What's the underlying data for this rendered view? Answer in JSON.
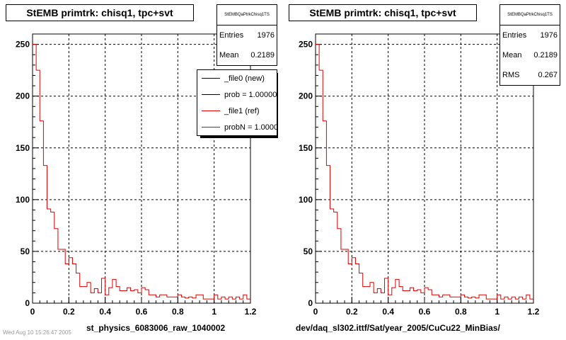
{
  "panels": [
    {
      "title": "StEMB primtrk: chisq1, tpc+svt",
      "stats": {
        "name": "StEMBQaPtrkChisq1TS",
        "rows": [
          {
            "label": "Entries",
            "value": "1976"
          },
          {
            "label": "Mean",
            "value": "0.2189"
          }
        ]
      },
      "legend": [
        {
          "label": "_file0 (new)",
          "color": "#000000"
        },
        {
          "label": "prob = 1.000000",
          "color": "#000000"
        },
        {
          "label": "_file1 (ref)",
          "color": "#e00000"
        },
        {
          "label": "probN = 1.000000",
          "color": "#e00000"
        }
      ],
      "xlabel": "st_physics_6083006_raw_1040002",
      "corner_text": "Wed Aug 10 15:26:47 2005"
    },
    {
      "title": "StEMB primtrk: chisq1, tpc+svt",
      "stats": {
        "name": "StEMBQaPtrkChisq1TS",
        "rows": [
          {
            "label": "Entries",
            "value": "1976"
          },
          {
            "label": "Mean",
            "value": "0.2189"
          },
          {
            "label": "RMS",
            "value": "0.267"
          }
        ]
      },
      "xlabel": "dev/daq_sl302.ittf/Sat/year_2005/CuCu22_MinBias/"
    }
  ],
  "chart_data": [
    {
      "type": "histogram",
      "line_color": "#e00000",
      "bin_edges_start": 0,
      "bin_width": 0.02,
      "values": [
        250,
        225,
        176,
        133,
        91,
        88,
        72,
        52,
        52,
        38,
        44,
        38,
        29,
        16,
        16,
        20,
        10,
        14,
        10,
        24,
        8,
        15,
        23,
        16,
        12,
        12,
        15,
        12,
        13,
        10,
        15,
        13,
        8,
        8,
        6,
        8,
        8,
        6,
        6,
        6,
        8,
        6,
        5,
        6,
        5,
        8,
        8,
        4,
        4,
        4,
        8,
        4,
        6,
        4,
        6,
        4,
        6,
        4,
        8,
        4
      ],
      "xlim": [
        0,
        1.2
      ],
      "ylim": [
        0,
        260
      ],
      "xticks": [
        "0",
        "0.2",
        "0.4",
        "0.6",
        "0.8",
        "1",
        "1.2"
      ],
      "yticks": [
        "0",
        "50",
        "100",
        "150",
        "200",
        "250"
      ],
      "grid": true
    },
    {
      "type": "histogram",
      "line_color": "#e00000",
      "bin_edges_start": 0,
      "bin_width": 0.02,
      "values": [
        250,
        225,
        176,
        133,
        91,
        88,
        72,
        52,
        52,
        38,
        44,
        38,
        29,
        16,
        16,
        20,
        10,
        14,
        10,
        24,
        8,
        15,
        23,
        16,
        12,
        12,
        15,
        12,
        13,
        10,
        15,
        13,
        8,
        8,
        6,
        8,
        8,
        6,
        6,
        6,
        8,
        6,
        5,
        6,
        5,
        8,
        8,
        4,
        4,
        4,
        8,
        4,
        6,
        4,
        6,
        4,
        6,
        4,
        8,
        4
      ],
      "xlim": [
        0,
        1.2
      ],
      "ylim": [
        0,
        260
      ],
      "xticks": [
        "0",
        "0.2",
        "0.4",
        "0.6",
        "0.8",
        "1",
        "1.2"
      ],
      "yticks": [
        "0",
        "50",
        "100",
        "150",
        "200",
        "250"
      ],
      "grid": true
    }
  ]
}
